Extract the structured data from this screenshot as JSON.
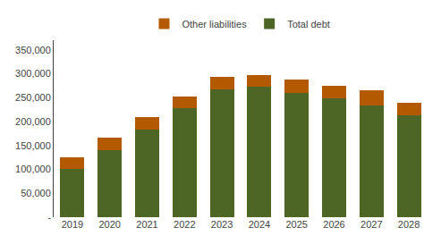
{
  "chart_data": {
    "type": "bar",
    "stacked": true,
    "categories": [
      "2019",
      "2020",
      "2021",
      "2022",
      "2023",
      "2024",
      "2025",
      "2026",
      "2027",
      "2028"
    ],
    "series": [
      {
        "name": "Total debt",
        "color": "#4d6626",
        "values": [
          100000,
          140000,
          183000,
          228000,
          268000,
          272000,
          260000,
          248000,
          233000,
          213000
        ]
      },
      {
        "name": "Other liabilities",
        "color": "#b35900",
        "values": [
          25000,
          26000,
          27000,
          24000,
          25000,
          25000,
          27000,
          27000,
          33000,
          27000
        ]
      }
    ],
    "ylim": [
      0,
      370000
    ],
    "yticks": [
      {
        "value": 0,
        "label": "-"
      },
      {
        "value": 50000,
        "label": "50,000"
      },
      {
        "value": 100000,
        "label": "100,000"
      },
      {
        "value": 150000,
        "label": "150,000"
      },
      {
        "value": 200000,
        "label": "200,000"
      },
      {
        "value": 250000,
        "label": "250,000"
      },
      {
        "value": 300000,
        "label": "300,000"
      },
      {
        "value": 350000,
        "label": "350,000"
      }
    ],
    "grid": false,
    "legend": "top"
  }
}
